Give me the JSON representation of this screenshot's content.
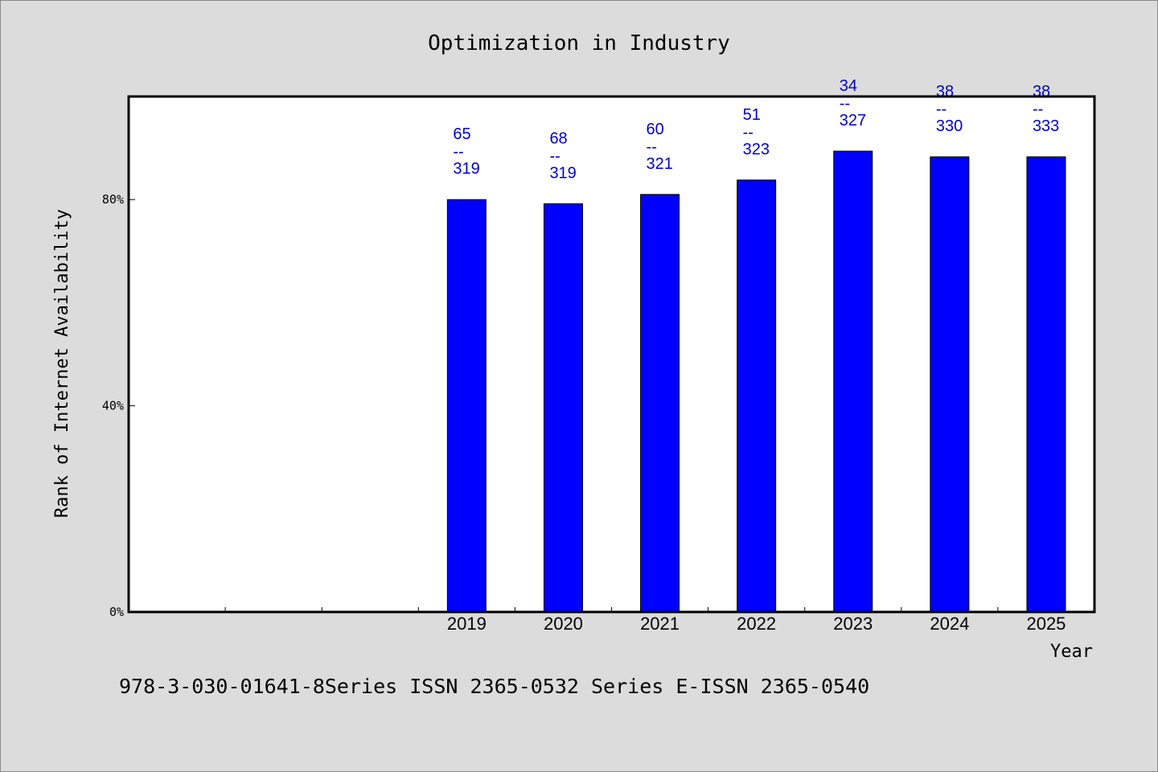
{
  "chart_data": {
    "type": "bar",
    "title": "Optimization in Industry",
    "xlabel": "Year",
    "ylabel": "Rank of Internet Availability",
    "categories": [
      "",
      "",
      "",
      "2019",
      "2020",
      "2021",
      "2022",
      "2023",
      "2024",
      "2025"
    ],
    "values": [
      null,
      null,
      null,
      80,
      79.2,
      81,
      83.8,
      89.4,
      88.3,
      88.3
    ],
    "data_labels": [
      null,
      null,
      null,
      [
        "65",
        "--",
        "319"
      ],
      [
        "68",
        "--",
        "319"
      ],
      [
        "60",
        "--",
        "321"
      ],
      [
        "51",
        "--",
        "323"
      ],
      [
        "34",
        "--",
        "327"
      ],
      [
        "38",
        "--",
        "330"
      ],
      [
        "38",
        "--",
        "333"
      ]
    ],
    "ylim": [
      0,
      100
    ],
    "yticks": [
      0,
      40,
      80
    ],
    "ytick_labels": [
      "0%",
      "40%",
      "80%"
    ],
    "grid": false,
    "bar_color": "#0000ff",
    "label_color": "#0000cc",
    "plot_background": "#ffffff",
    "page_background": "#dcdcdc"
  },
  "footer": "978-3-030-01641-8Series ISSN 2365-0532 Series E-ISSN 2365-0540"
}
